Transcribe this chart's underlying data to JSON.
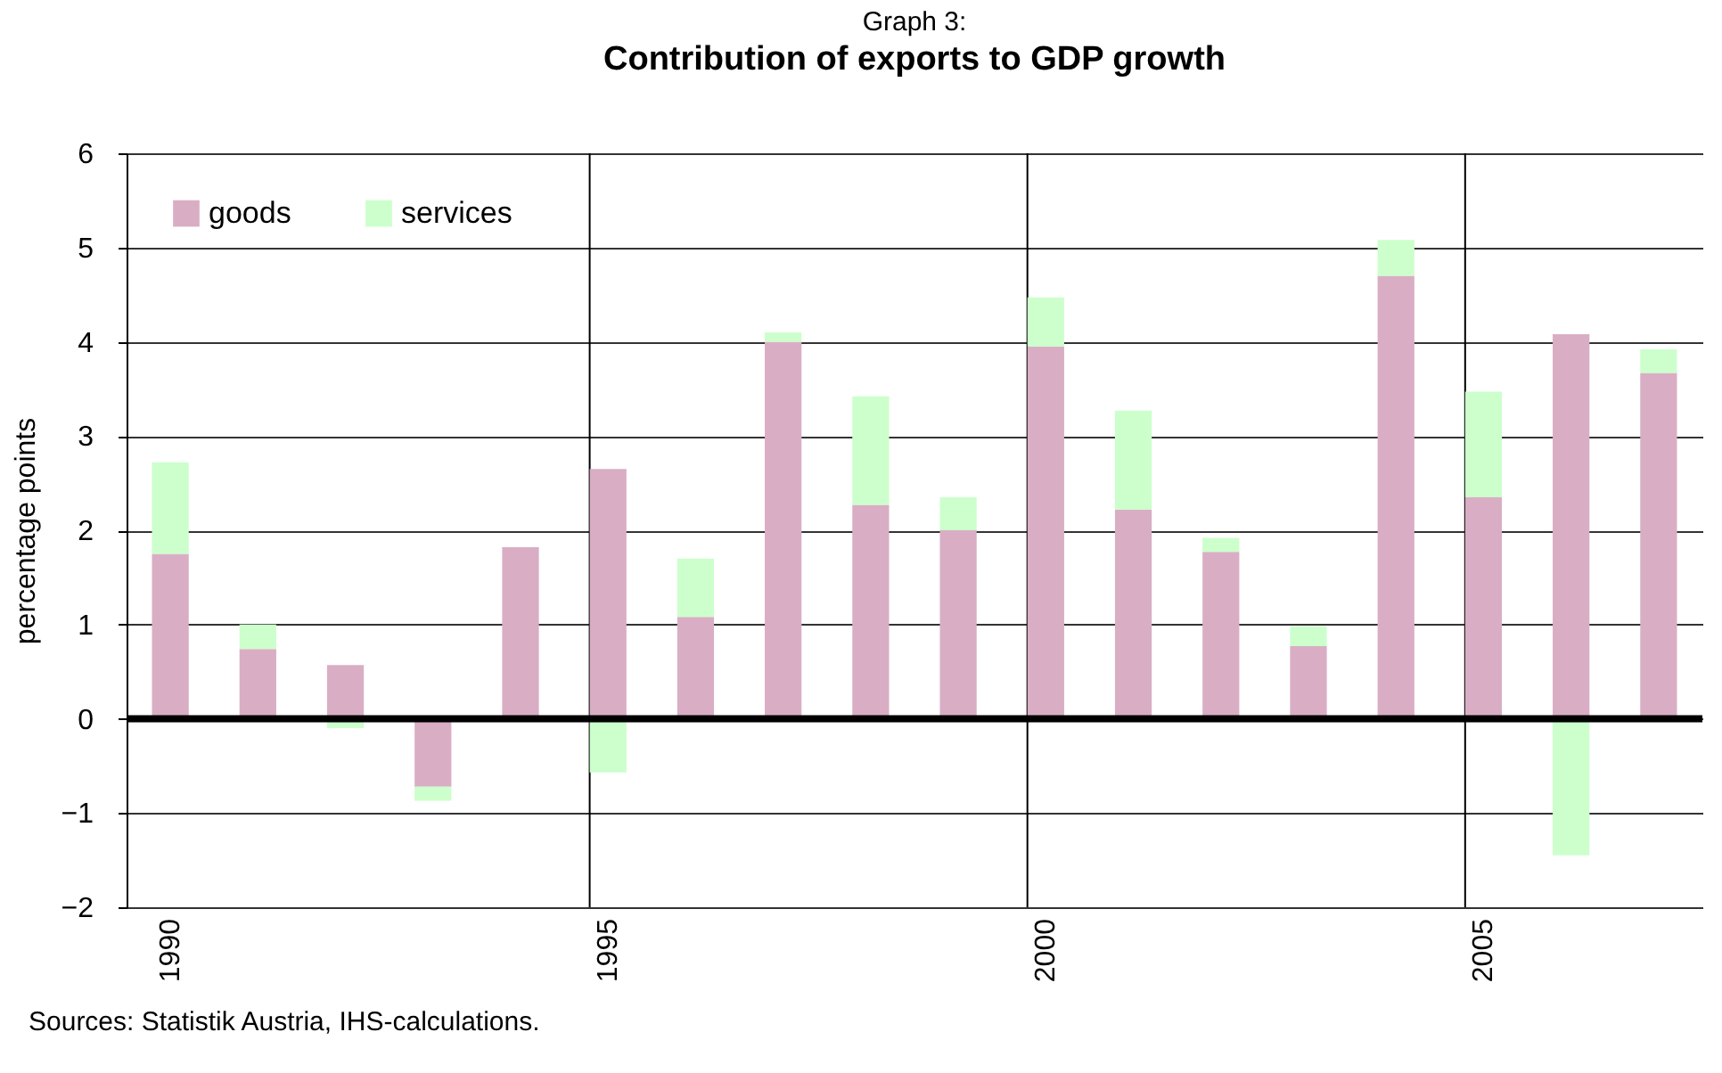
{
  "chart_data": {
    "type": "bar",
    "stacked": true,
    "subtitle": "Graph 3:",
    "title": "Contribution of exports to GDP growth",
    "ylabel": "percentage points",
    "categories": [
      "1990",
      null,
      null,
      null,
      null,
      "1995",
      null,
      null,
      null,
      null,
      "2000",
      null,
      null,
      null,
      null,
      "2005",
      null,
      null
    ],
    "series": [
      {
        "name": "goods",
        "color": "#d9aec4",
        "values": [
          1.75,
          0.74,
          0.57,
          -0.72,
          1.82,
          2.65,
          1.08,
          4.0,
          2.27,
          2.0,
          3.95,
          2.22,
          1.77,
          0.77,
          4.7,
          2.35,
          4.08,
          3.67
        ]
      },
      {
        "name": "services",
        "color": "#ccffcc",
        "values": [
          0.97,
          0.26,
          -0.1,
          -0.15,
          0,
          -0.57,
          0.62,
          0.1,
          1.15,
          0.35,
          0.52,
          1.05,
          0.15,
          0.21,
          0.38,
          1.12,
          -1.45,
          0.25
        ]
      }
    ],
    "ylim": [
      -2,
      6
    ],
    "yticks": [
      -2,
      -1,
      0,
      1,
      2,
      3,
      4,
      5,
      6
    ],
    "grid": true,
    "legend": "top left",
    "annotations": [
      "Sources: Statistik Austria, IHS-calculations."
    ]
  }
}
